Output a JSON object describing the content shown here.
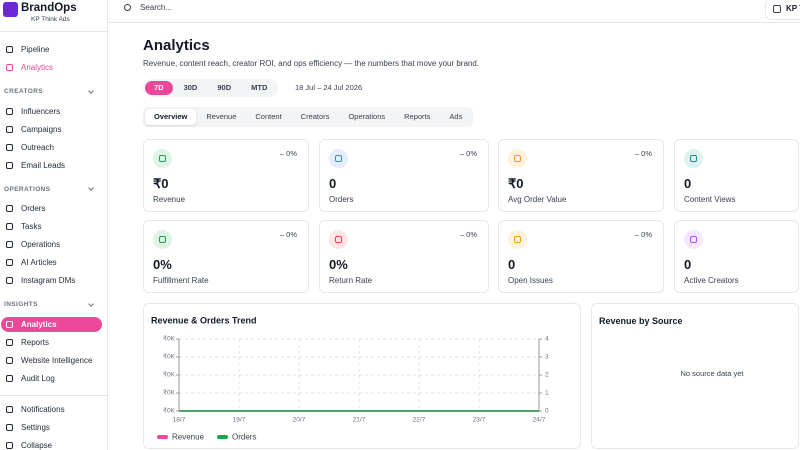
{
  "brand": {
    "name": "BrandOps",
    "subtitle": "KP Think Ads"
  },
  "search": {
    "placeholder": "Search..."
  },
  "user": {
    "label": "KP T"
  },
  "sidebar": {
    "accent": "#ec4899",
    "top": [
      "Pipeline",
      "Analytics"
    ],
    "top_highlight": 1,
    "sections": [
      {
        "title": "CREATORS",
        "items": [
          "Influencers",
          "Campaigns",
          "Outreach",
          "Email Leads"
        ]
      },
      {
        "title": "OPERATIONS",
        "items": [
          "Orders",
          "Tasks",
          "Operations",
          "AI Articles",
          "Instagram DMs"
        ]
      },
      {
        "title": "INSIGHTS",
        "items": [
          "Analytics",
          "Reports",
          "Website Intelligence",
          "Audit Log"
        ]
      }
    ],
    "active": {
      "section": 2,
      "item": 0
    },
    "bottom": [
      "Notifications",
      "Settings",
      "Collapse"
    ]
  },
  "header": {
    "title": "Analytics",
    "subtitle": "Revenue, content reach, creator ROI, and ops efficiency — the numbers that move your brand."
  },
  "ranges": {
    "options": [
      "7D",
      "30D",
      "90D",
      "MTD"
    ],
    "active": 0,
    "period": "18 Jul – 24 Jul 2026"
  },
  "tabs": {
    "options": [
      "Overview",
      "Revenue",
      "Content",
      "Creators",
      "Operations",
      "Reports",
      "Ads"
    ],
    "active": 0
  },
  "kpis": [
    {
      "label": "Revenue",
      "value": "₹0",
      "change": "– 0%",
      "color": "#16a34a"
    },
    {
      "label": "Orders",
      "value": "0",
      "change": "– 0%",
      "color": "#3b82f6"
    },
    {
      "label": "Avg Order Value",
      "value": "₹0",
      "change": "– 0%",
      "color": "#f59e0b"
    },
    {
      "label": "Content Views",
      "value": "0",
      "change": "",
      "color": "#0d9488"
    },
    {
      "label": "Fulfillment Rate",
      "value": "0%",
      "change": "– 0%",
      "color": "#16a34a"
    },
    {
      "label": "Return Rate",
      "value": "0%",
      "change": "– 0%",
      "color": "#ef4444"
    },
    {
      "label": "Open Issues",
      "value": "0",
      "change": "– 0%",
      "color": "#f59e0b"
    },
    {
      "label": "Active Creators",
      "value": "0",
      "change": "",
      "color": "#a855f7"
    }
  ],
  "chart_data": {
    "type": "line",
    "title": "Revenue & Orders Trend",
    "categories": [
      "18/7",
      "19/7",
      "20/7",
      "21/7",
      "22/7",
      "23/7",
      "24/7"
    ],
    "series": [
      {
        "name": "Revenue",
        "color": "#ec4899",
        "values": [
          0,
          0,
          0,
          0,
          0,
          0,
          0
        ]
      },
      {
        "name": "Orders",
        "color": "#16a34a",
        "axis": "y2",
        "values": [
          0,
          0,
          0,
          0,
          0,
          0,
          0
        ]
      }
    ],
    "ylim": [
      0,
      4
    ],
    "yticks": [
      {
        "value": 0,
        "label": "₹0K"
      },
      {
        "value": 1,
        "label": "₹0K"
      },
      {
        "value": 2,
        "label": "₹0K"
      },
      {
        "value": 3,
        "label": "₹0K"
      },
      {
        "value": 4,
        "label": "₹0K"
      }
    ],
    "y2lim": [
      0,
      4
    ],
    "y2ticks": [
      0,
      1,
      2,
      3,
      4
    ],
    "grid": true
  },
  "source_card": {
    "title": "Revenue by Source",
    "empty": "No source data yet"
  }
}
